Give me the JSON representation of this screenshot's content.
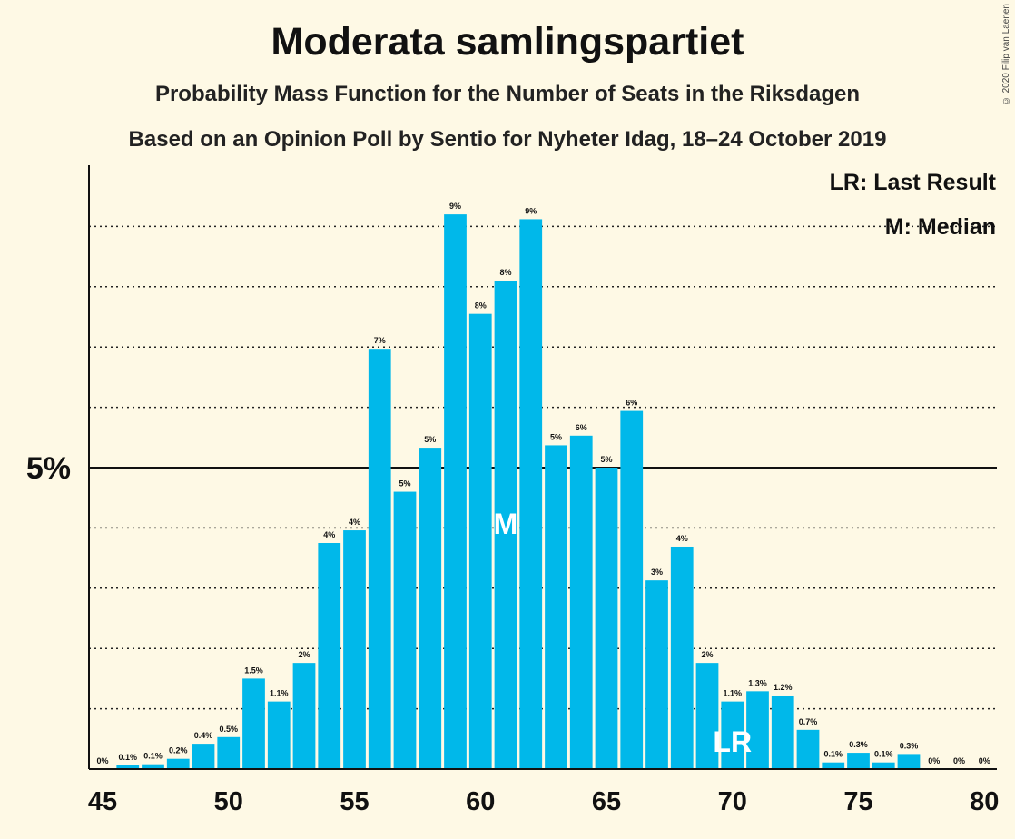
{
  "chart_data": {
    "type": "bar",
    "title": "Moderata samlingspartiet",
    "subtitle": "Probability Mass Function for the Number of Seats in the Riksdagen",
    "subtitle2": "Based on an Opinion Poll by Sentio for Nyheter Idag, 18–24 October 2019",
    "copyright": "© 2020 Filip van Laenen",
    "legend": [
      "LR: Last Result",
      "M: Median"
    ],
    "y_tick_label": "5%",
    "y_tick_value": 5,
    "ylim": [
      0,
      10
    ],
    "xlim": [
      45,
      80
    ],
    "x_ticks": [
      45,
      50,
      55,
      60,
      65,
      70,
      75,
      80
    ],
    "bar_color": "#00b8ea",
    "median_seat": 61,
    "last_result_seat": 70,
    "median_label": "M",
    "last_result_label": "LR",
    "bars": [
      {
        "seat": 45,
        "value": 0.0,
        "label": "0%"
      },
      {
        "seat": 46,
        "value": 0.06,
        "label": "0.1%"
      },
      {
        "seat": 47,
        "value": 0.08,
        "label": "0.1%"
      },
      {
        "seat": 48,
        "value": 0.17,
        "label": "0.2%"
      },
      {
        "seat": 49,
        "value": 0.42,
        "label": "0.4%"
      },
      {
        "seat": 50,
        "value": 0.53,
        "label": "0.5%"
      },
      {
        "seat": 51,
        "value": 1.5,
        "label": "1.5%"
      },
      {
        "seat": 52,
        "value": 1.12,
        "label": "1.1%"
      },
      {
        "seat": 53,
        "value": 1.76,
        "label": "2%"
      },
      {
        "seat": 54,
        "value": 3.75,
        "label": "4%"
      },
      {
        "seat": 55,
        "value": 3.96,
        "label": "4%"
      },
      {
        "seat": 56,
        "value": 6.97,
        "label": "7%"
      },
      {
        "seat": 57,
        "value": 4.6,
        "label": "5%"
      },
      {
        "seat": 58,
        "value": 5.33,
        "label": "5%"
      },
      {
        "seat": 59,
        "value": 9.2,
        "label": "9%"
      },
      {
        "seat": 60,
        "value": 7.55,
        "label": "8%"
      },
      {
        "seat": 61,
        "value": 8.1,
        "label": "8%"
      },
      {
        "seat": 62,
        "value": 9.12,
        "label": "9%"
      },
      {
        "seat": 63,
        "value": 5.37,
        "label": "5%"
      },
      {
        "seat": 64,
        "value": 5.53,
        "label": "6%"
      },
      {
        "seat": 65,
        "value": 5.0,
        "label": "5%"
      },
      {
        "seat": 66,
        "value": 5.94,
        "label": "6%"
      },
      {
        "seat": 67,
        "value": 3.13,
        "label": "3%"
      },
      {
        "seat": 68,
        "value": 3.69,
        "label": "4%"
      },
      {
        "seat": 69,
        "value": 1.76,
        "label": "2%"
      },
      {
        "seat": 70,
        "value": 1.12,
        "label": "1.1%"
      },
      {
        "seat": 71,
        "value": 1.29,
        "label": "1.3%"
      },
      {
        "seat": 72,
        "value": 1.22,
        "label": "1.2%"
      },
      {
        "seat": 73,
        "value": 0.65,
        "label": "0.7%"
      },
      {
        "seat": 74,
        "value": 0.11,
        "label": "0.1%"
      },
      {
        "seat": 75,
        "value": 0.27,
        "label": "0.3%"
      },
      {
        "seat": 76,
        "value": 0.11,
        "label": "0.1%"
      },
      {
        "seat": 77,
        "value": 0.25,
        "label": "0.3%"
      },
      {
        "seat": 78,
        "value": 0.0,
        "label": "0%"
      },
      {
        "seat": 79,
        "value": 0.0,
        "label": "0%"
      },
      {
        "seat": 80,
        "value": 0.0,
        "label": "0%"
      }
    ]
  }
}
